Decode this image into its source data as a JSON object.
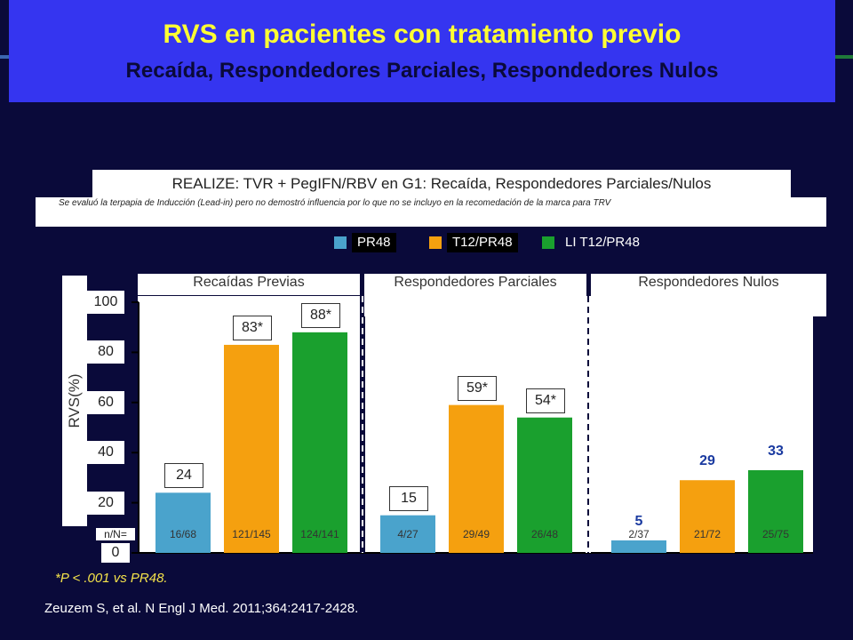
{
  "slide": {
    "title": "RVS en pacientes con tratamiento previo",
    "subtitle": "Recaída, Respondedores Parciales, Respondedores Nulos",
    "realize_header": "REALIZE: TVR + PegIFN/RBV en G1: Recaída, Respondedores Parciales/Nulos",
    "note": "Se evaluó la terpapia de Inducción (Lead-in) pero  no demostró influencia por lo que no se incluyo  en la recomedación  de la marca para  TRV",
    "footnote": "*P < .001 vs PR48.",
    "citation": "Zeuzem S, et al. N Engl J Med. 2011;364:2417-2428."
  },
  "chart_data": {
    "type": "bar",
    "ylabel": "RVS(%)",
    "ylim": [
      0,
      100
    ],
    "yticks": [
      "0",
      "20",
      "40",
      "60",
      "80",
      "100"
    ],
    "n_label": "n/N=",
    "colors": {
      "PR48": "#4aa3cc",
      "T12/PR48": "#f5a00f",
      "LI T12/PR48": "#1aa02e"
    },
    "legend": [
      "PR48",
      "T12/PR48",
      "LI T12/PR48"
    ],
    "groups": [
      {
        "name": "Recaídas Previas",
        "bars": [
          {
            "series": "PR48",
            "value": 24,
            "label": "24",
            "n": "16/68"
          },
          {
            "series": "T12/PR48",
            "value": 83,
            "label": "83*",
            "n": "121/145"
          },
          {
            "series": "LI T12/PR48",
            "value": 88,
            "label": "88*",
            "n": "124/141"
          }
        ]
      },
      {
        "name": "Respondedores Parciales",
        "bars": [
          {
            "series": "PR48",
            "value": 15,
            "label": "15",
            "n": "4/27"
          },
          {
            "series": "T12/PR48",
            "value": 59,
            "label": "59*",
            "n": "29/49"
          },
          {
            "series": "LI T12/PR48",
            "value": 54,
            "label": "54*",
            "n": "26/48"
          }
        ]
      },
      {
        "name": "Respondedores Nulos",
        "bars": [
          {
            "series": "PR48",
            "value": 5,
            "label": "5",
            "n": "2/37"
          },
          {
            "series": "T12/PR48",
            "value": 29,
            "label": "29",
            "n": "21/72"
          },
          {
            "series": "LI T12/PR48",
            "value": 33,
            "label": "33",
            "n": "25/75"
          }
        ]
      }
    ]
  }
}
